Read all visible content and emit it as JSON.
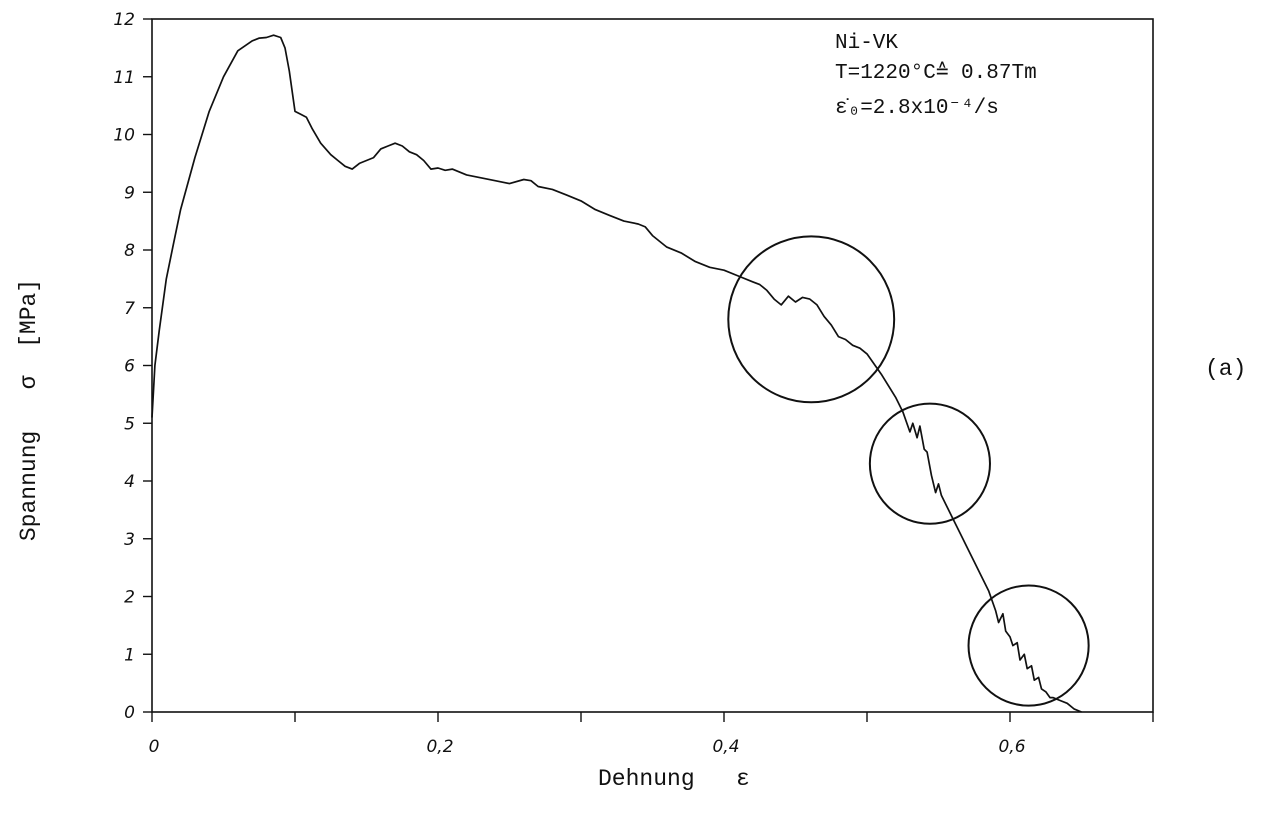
{
  "chart_data": {
    "type": "line",
    "title": "",
    "xlabel": "Dehnung   ε",
    "ylabel": "Spannung   σ  [MPa]",
    "xlim": [
      0,
      0.7
    ],
    "ylim": [
      0,
      12
    ],
    "x_ticks": [
      0,
      0.1,
      0.2,
      0.3,
      0.4,
      0.5,
      0.6,
      0.7
    ],
    "x_tick_labels": [
      {
        "value": 0,
        "label": "0"
      },
      {
        "value": 0.2,
        "label": "0,2"
      },
      {
        "value": 0.4,
        "label": "0,4"
      },
      {
        "value": 0.6,
        "label": "0,6"
      }
    ],
    "y_ticks": [
      0,
      1,
      2,
      3,
      4,
      5,
      6,
      7,
      8,
      9,
      10,
      11,
      12
    ],
    "y_tick_labels": [
      "0",
      "1",
      "2",
      "3",
      "4",
      "5",
      "6",
      "7",
      "8",
      "9",
      "10",
      "11",
      "12"
    ],
    "grid": false,
    "annotation_lines": [
      "Ni-VK",
      "T=1220°C≙ 0.87Tm",
      "ε̇₀=2.8x10⁻⁴/s"
    ],
    "panel_label": "(a)",
    "circled_regions": [
      {
        "x": 0.461,
        "y": 6.8,
        "r": 0.058
      },
      {
        "x": 0.544,
        "y": 4.3,
        "r": 0.042
      },
      {
        "x": 0.613,
        "y": 1.15,
        "r": 0.042
      }
    ],
    "series": [
      {
        "x": [
          0,
          0.002,
          0.005,
          0.01,
          0.015,
          0.02,
          0.03,
          0.04,
          0.05,
          0.06,
          0.07,
          0.075,
          0.08,
          0.085,
          0.09,
          0.093,
          0.096,
          0.1,
          0.104,
          0.108,
          0.112,
          0.118,
          0.125,
          0.13,
          0.135,
          0.14,
          0.145,
          0.15,
          0.155,
          0.16,
          0.165,
          0.17,
          0.175,
          0.18,
          0.185,
          0.19,
          0.195,
          0.2,
          0.205,
          0.21,
          0.22,
          0.23,
          0.24,
          0.25,
          0.26,
          0.265,
          0.27,
          0.28,
          0.29,
          0.3,
          0.31,
          0.32,
          0.33,
          0.34,
          0.345,
          0.35,
          0.36,
          0.37,
          0.38,
          0.39,
          0.4,
          0.41,
          0.42,
          0.425,
          0.43,
          0.435,
          0.44,
          0.445,
          0.45,
          0.455,
          0.46,
          0.465,
          0.47,
          0.475,
          0.48,
          0.485,
          0.49,
          0.495,
          0.5,
          0.51,
          0.52,
          0.525,
          0.53,
          0.532,
          0.535,
          0.537,
          0.54,
          0.542,
          0.545,
          0.548,
          0.55,
          0.552,
          0.555,
          0.56,
          0.565,
          0.57,
          0.575,
          0.58,
          0.585,
          0.59,
          0.592,
          0.595,
          0.597,
          0.6,
          0.602,
          0.605,
          0.607,
          0.61,
          0.612,
          0.615,
          0.617,
          0.62,
          0.622,
          0.625,
          0.628,
          0.63,
          0.635,
          0.64,
          0.645,
          0.65
        ],
        "y": [
          5.1,
          6.0,
          6.6,
          7.5,
          8.1,
          8.7,
          9.6,
          10.4,
          11.0,
          11.45,
          11.62,
          11.67,
          11.68,
          11.72,
          11.68,
          11.5,
          11.1,
          10.4,
          10.35,
          10.3,
          10.1,
          9.85,
          9.65,
          9.55,
          9.45,
          9.4,
          9.5,
          9.55,
          9.6,
          9.75,
          9.8,
          9.85,
          9.8,
          9.7,
          9.65,
          9.55,
          9.4,
          9.42,
          9.38,
          9.4,
          9.3,
          9.25,
          9.2,
          9.15,
          9.22,
          9.2,
          9.1,
          9.05,
          8.95,
          8.85,
          8.7,
          8.6,
          8.5,
          8.45,
          8.4,
          8.25,
          8.05,
          7.95,
          7.8,
          7.7,
          7.65,
          7.55,
          7.45,
          7.4,
          7.3,
          7.15,
          7.05,
          7.2,
          7.1,
          7.18,
          7.15,
          7.05,
          6.85,
          6.7,
          6.5,
          6.45,
          6.35,
          6.3,
          6.2,
          5.85,
          5.45,
          5.2,
          4.85,
          5.0,
          4.75,
          4.95,
          4.55,
          4.5,
          4.1,
          3.8,
          3.95,
          3.75,
          3.6,
          3.35,
          3.1,
          2.85,
          2.6,
          2.35,
          2.1,
          1.75,
          1.55,
          1.7,
          1.4,
          1.3,
          1.15,
          1.2,
          0.9,
          1.0,
          0.75,
          0.8,
          0.55,
          0.6,
          0.4,
          0.35,
          0.25,
          0.25,
          0.2,
          0.15,
          0.05,
          0.0
        ]
      }
    ]
  }
}
